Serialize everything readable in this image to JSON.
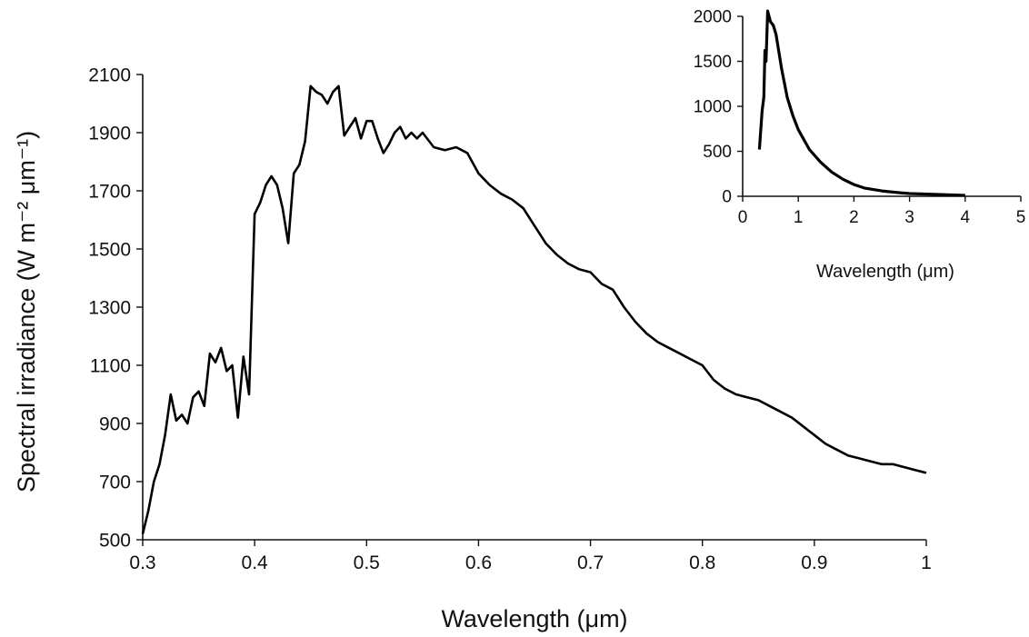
{
  "chart_data": [
    {
      "type": "line",
      "xlabel": "Wavelength (μm)",
      "ylabel": "Spectral irradiance (W m⁻² μm⁻¹)",
      "xlim": [
        0.3,
        1.0
      ],
      "ylim": [
        500,
        2100
      ],
      "xticks": [
        "0.3",
        "0.4",
        "0.5",
        "0.6",
        "0.7",
        "0.8",
        "0.9",
        "1"
      ],
      "yticks": [
        "500",
        "700",
        "900",
        "1100",
        "1300",
        "1500",
        "1700",
        "1900",
        "2100"
      ],
      "grid": false,
      "series": [
        {
          "x": [
            0.3,
            0.305,
            0.31,
            0.315,
            0.32,
            0.325,
            0.33,
            0.335,
            0.34,
            0.345,
            0.35,
            0.355,
            0.36,
            0.365,
            0.37,
            0.375,
            0.38,
            0.385,
            0.39,
            0.395,
            0.4,
            0.405,
            0.41,
            0.415,
            0.42,
            0.425,
            0.43,
            0.435,
            0.44,
            0.445,
            0.45,
            0.455,
            0.46,
            0.465,
            0.47,
            0.475,
            0.48,
            0.485,
            0.49,
            0.495,
            0.5,
            0.505,
            0.51,
            0.515,
            0.52,
            0.525,
            0.53,
            0.535,
            0.54,
            0.545,
            0.55,
            0.56,
            0.57,
            0.58,
            0.59,
            0.6,
            0.61,
            0.62,
            0.63,
            0.64,
            0.65,
            0.66,
            0.67,
            0.68,
            0.69,
            0.7,
            0.71,
            0.72,
            0.73,
            0.74,
            0.75,
            0.76,
            0.77,
            0.78,
            0.79,
            0.8,
            0.81,
            0.82,
            0.83,
            0.84,
            0.85,
            0.86,
            0.87,
            0.88,
            0.89,
            0.9,
            0.91,
            0.92,
            0.93,
            0.94,
            0.95,
            0.96,
            0.97,
            0.98,
            0.99,
            1.0
          ],
          "y": [
            520,
            600,
            700,
            760,
            860,
            1000,
            910,
            930,
            900,
            990,
            1010,
            960,
            1140,
            1110,
            1160,
            1080,
            1100,
            920,
            1130,
            1000,
            1620,
            1660,
            1720,
            1750,
            1720,
            1640,
            1520,
            1760,
            1790,
            1870,
            2060,
            2040,
            2030,
            2000,
            2040,
            2060,
            1890,
            1920,
            1950,
            1880,
            1940,
            1940,
            1880,
            1830,
            1860,
            1900,
            1920,
            1880,
            1900,
            1880,
            1900,
            1850,
            1840,
            1850,
            1830,
            1760,
            1720,
            1690,
            1670,
            1640,
            1580,
            1520,
            1480,
            1450,
            1430,
            1420,
            1380,
            1360,
            1300,
            1250,
            1210,
            1180,
            1160,
            1140,
            1120,
            1100,
            1050,
            1020,
            1000,
            990,
            980,
            960,
            940,
            920,
            890,
            860,
            830,
            810,
            790,
            780,
            770,
            760,
            760,
            750,
            740,
            730
          ]
        }
      ]
    },
    {
      "type": "line",
      "xlabel": "Wavelength (μm)",
      "ylabel": "",
      "xlim": [
        0,
        5
      ],
      "ylim": [
        0,
        2000
      ],
      "xticks": [
        "0",
        "1",
        "2",
        "3",
        "4",
        "5"
      ],
      "yticks": [
        "0",
        "500",
        "1000",
        "1500",
        "2000"
      ],
      "grid": false,
      "series": [
        {
          "x": [
            0.3,
            0.35,
            0.38,
            0.4,
            0.42,
            0.45,
            0.5,
            0.55,
            0.6,
            0.7,
            0.8,
            0.9,
            1.0,
            1.2,
            1.4,
            1.6,
            1.8,
            2.0,
            2.2,
            2.5,
            2.8,
            3.0,
            3.5,
            4.0
          ],
          "y": [
            520,
            950,
            1100,
            1620,
            1500,
            2060,
            1940,
            1900,
            1800,
            1420,
            1100,
            900,
            740,
            520,
            380,
            270,
            190,
            130,
            90,
            60,
            40,
            30,
            20,
            10
          ]
        }
      ]
    }
  ]
}
